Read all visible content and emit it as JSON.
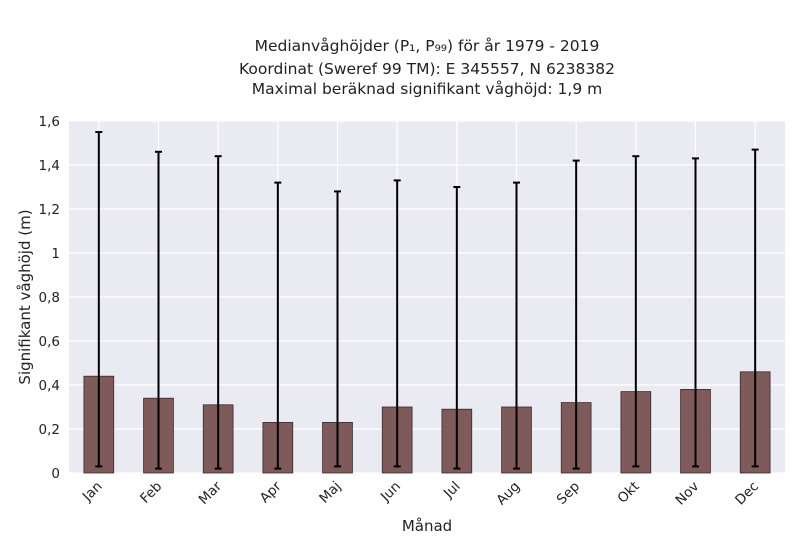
{
  "chart_data": {
    "type": "bar",
    "title_lines": [
      "Medianvåghöjder (P₁, P₉₉) för år 1979 - 2019",
      "Koordinat (Sweref 99 TM): E 345557, N 6238382",
      "Maximal beräknad signifikant våghöjd: 1,9 m"
    ],
    "xlabel": "Månad",
    "ylabel": "Signifikant våghöjd (m)",
    "categories": [
      "Jan",
      "Feb",
      "Mar",
      "Apr",
      "Maj",
      "Jun",
      "Jul",
      "Aug",
      "Sep",
      "Okt",
      "Nov",
      "Dec"
    ],
    "values": [
      0.44,
      0.34,
      0.31,
      0.23,
      0.23,
      0.3,
      0.29,
      0.3,
      0.32,
      0.37,
      0.38,
      0.46
    ],
    "error_low": [
      0.03,
      0.02,
      0.02,
      0.02,
      0.03,
      0.03,
      0.02,
      0.02,
      0.02,
      0.03,
      0.03,
      0.03
    ],
    "error_high": [
      1.55,
      1.46,
      1.44,
      1.32,
      1.28,
      1.33,
      1.3,
      1.32,
      1.42,
      1.44,
      1.43,
      1.47
    ],
    "ylim": [
      0,
      1.6
    ],
    "yticks": [
      0,
      0.2,
      0.4,
      0.6,
      0.8,
      1,
      1.2,
      1.4,
      1.6
    ],
    "ytick_labels": [
      "0",
      "0,2",
      "0,4",
      "0,6",
      "0,8",
      "1",
      "1,2",
      "1,4",
      "1,6"
    ],
    "grid": true,
    "colors": {
      "bar": "#7e5a5a",
      "bar_edge": "#3a2a2a",
      "errorbar": "#000000",
      "plot_background": "#eaeaf2",
      "grid": "#ffffff"
    }
  }
}
